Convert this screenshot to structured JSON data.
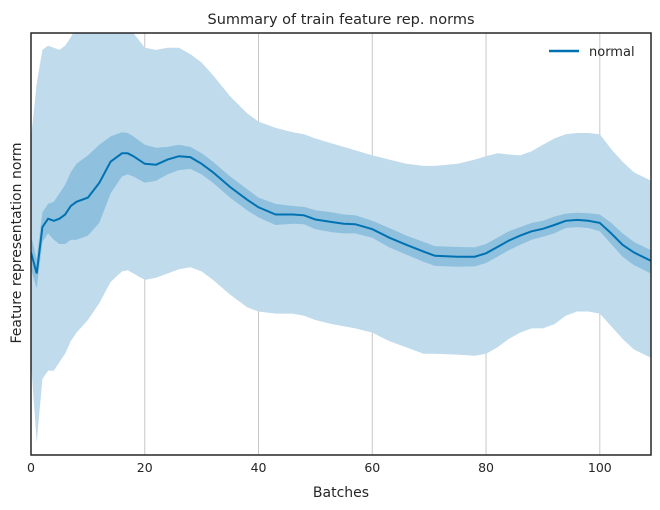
{
  "chart_data": {
    "type": "line",
    "title": "Summary of train feature rep. norms",
    "xlabel": "Batches",
    "ylabel": "Feature representation norm",
    "xlim": [
      0,
      109
    ],
    "ylim": [
      0,
      100
    ],
    "xticks": [
      0,
      20,
      40,
      60,
      80,
      100
    ],
    "grid": "vertical",
    "legend_position": "top-right",
    "colors": {
      "line": "#0072b2",
      "band_outer": "#bfdbec",
      "band_inner": "#8fc0de",
      "grid": "#c8c8c8",
      "axis": "#262626"
    },
    "series": [
      {
        "name": "normal",
        "x": [
          0,
          1,
          2,
          3,
          4,
          5,
          6,
          7,
          8,
          10,
          12,
          14,
          16,
          17,
          18,
          20,
          22,
          24,
          26,
          28,
          30,
          32,
          35,
          38,
          40,
          43,
          46,
          48,
          50,
          53,
          55,
          57,
          60,
          63,
          66,
          69,
          71,
          75,
          78,
          80,
          82,
          84,
          86,
          88,
          90,
          92,
          94,
          96,
          98,
          100,
          102,
          104,
          106,
          109
        ],
        "mean": [
          48.0,
          43.0,
          54.0,
          56.0,
          55.5,
          56.0,
          57.0,
          59.0,
          60.0,
          61.0,
          64.5,
          69.5,
          71.5,
          71.5,
          70.8,
          69.0,
          68.8,
          70.0,
          70.8,
          70.6,
          69.0,
          67.0,
          63.5,
          60.5,
          58.7,
          57.0,
          57.0,
          56.8,
          55.8,
          55.2,
          54.8,
          54.7,
          53.5,
          51.5,
          49.8,
          48.2,
          47.2,
          47.0,
          47.0,
          47.8,
          49.3,
          50.8,
          52.0,
          53.0,
          53.6,
          54.5,
          55.5,
          55.7,
          55.5,
          55.0,
          52.5,
          49.8,
          48.0,
          46.0
        ],
        "inner_upper": [
          52.0,
          46.5,
          57.5,
          59.5,
          60.0,
          62.0,
          64.0,
          67.0,
          69.0,
          71.0,
          73.5,
          75.5,
          76.5,
          76.3,
          75.5,
          73.5,
          72.8,
          73.0,
          73.5,
          73.0,
          71.5,
          69.5,
          66.0,
          63.0,
          61.0,
          59.5,
          59.0,
          58.8,
          58.0,
          57.5,
          57.0,
          56.8,
          55.5,
          53.8,
          52.0,
          50.5,
          49.5,
          49.3,
          49.2,
          50.0,
          51.5,
          53.0,
          54.0,
          55.0,
          55.5,
          56.5,
          57.2,
          57.4,
          57.3,
          57.0,
          55.0,
          52.5,
          50.5,
          48.5
        ],
        "inner_lower": [
          44.0,
          39.5,
          50.5,
          52.5,
          51.0,
          50.0,
          50.0,
          51.0,
          51.0,
          52.0,
          55.0,
          62.0,
          66.0,
          66.5,
          66.0,
          64.5,
          65.0,
          66.5,
          67.5,
          67.8,
          66.5,
          64.5,
          61.0,
          58.0,
          56.3,
          54.5,
          54.8,
          54.7,
          53.5,
          52.8,
          52.5,
          52.5,
          51.5,
          49.2,
          47.5,
          45.8,
          44.8,
          44.6,
          44.7,
          45.5,
          47.0,
          48.5,
          49.8,
          51.0,
          51.7,
          52.5,
          53.8,
          54.0,
          53.8,
          53.0,
          50.0,
          47.0,
          45.0,
          43.0
        ],
        "outer_upper": [
          75.0,
          88.0,
          96.0,
          97.0,
          96.5,
          96.0,
          97.0,
          99.0,
          101.5,
          103.0,
          102.5,
          104.0,
          102.5,
          101.5,
          100.0,
          96.5,
          96.0,
          96.5,
          96.5,
          95.0,
          93.0,
          90.0,
          85.0,
          81.0,
          79.0,
          77.5,
          76.5,
          76.0,
          75.0,
          73.8,
          73.0,
          72.2,
          71.0,
          70.0,
          69.0,
          68.5,
          68.5,
          69.0,
          70.0,
          70.8,
          71.5,
          71.2,
          71.0,
          72.0,
          73.5,
          75.0,
          76.0,
          76.3,
          76.3,
          76.0,
          72.5,
          69.5,
          67.0,
          65.0
        ],
        "outer_lower": [
          22.0,
          3.0,
          18.0,
          20.0,
          20.0,
          22.0,
          24.0,
          27.0,
          29.0,
          32.0,
          36.0,
          41.0,
          43.5,
          43.8,
          43.0,
          41.5,
          42.0,
          43.0,
          44.0,
          44.5,
          43.5,
          41.5,
          38.0,
          35.0,
          34.0,
          33.5,
          33.5,
          33.0,
          32.0,
          31.0,
          30.5,
          30.0,
          29.0,
          27.0,
          25.5,
          24.0,
          24.0,
          23.8,
          23.5,
          24.0,
          25.5,
          27.5,
          29.0,
          30.0,
          30.0,
          31.0,
          33.0,
          34.0,
          34.0,
          33.5,
          30.5,
          27.5,
          25.0,
          23.0
        ]
      }
    ]
  }
}
